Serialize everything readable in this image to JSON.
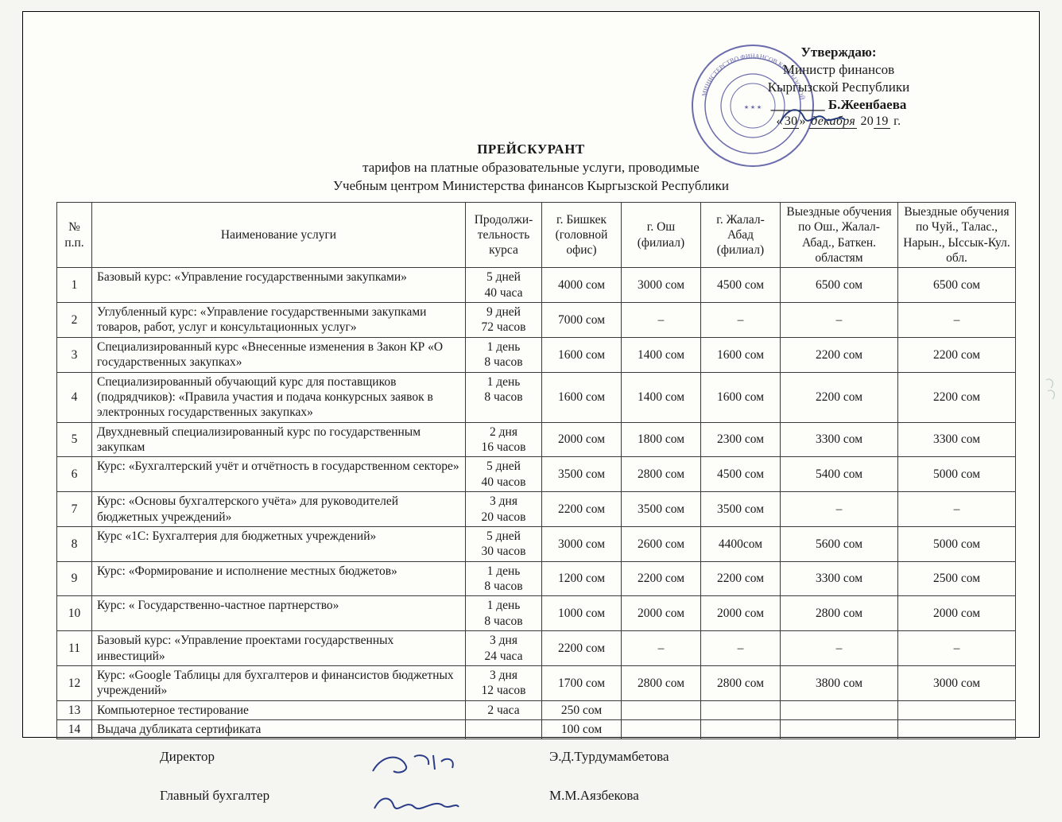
{
  "approval": {
    "label": "Утверждаю:",
    "line1": "Министр финансов",
    "line2": "Кыргызской Республики",
    "name": "Б.Жеенбаева",
    "date_prefix_quote": "«",
    "date_day": "30",
    "date_prefix_quote_close": "»",
    "date_month_handwritten": "декабря",
    "date_year_prefix": "20",
    "date_year_suffix": "19",
    "date_year_tail": " г."
  },
  "stamp": {
    "outer_text": "МИНИСТЕРСТВО ФИНАНСОВ КЫРГЫЗСКОЙ РЕСПУБЛИКИ",
    "color": "#34358f"
  },
  "title": {
    "main": "ПРЕЙСКУРАНТ",
    "line1": "тарифов на платные образовательные услуги, проводимые",
    "line2": "Учебным центром Министерства финансов Кыргызской Республики"
  },
  "table": {
    "columns": [
      "№ п.п.",
      "Наименование услуги",
      "Продолжи­тельность курса",
      "г. Бишкек (головной офис)",
      "г. Ош (филиал)",
      "г. Жалал-Абад (филиал)",
      "Выездные обучения по Ош., Жалал-Абад., Баткен. областям",
      "Выездные обучения по Чуй., Талас., Нарын., Ыссык-Кул. обл."
    ],
    "rows": [
      {
        "num": "1",
        "name": "Базовый курс: «Управление государственными закупками»",
        "dur": "5 дней\n40 часа",
        "p": [
          "4000 сом",
          "3000 сом",
          "4500 сом",
          "6500 сом",
          "6500 сом"
        ]
      },
      {
        "num": "2",
        "name": "Углубленный курс: «Управление государственными закупками товаров, работ, услуг и консультационных услуг»",
        "dur": "9 дней\n72 часов",
        "p": [
          "7000 сом",
          "–",
          "–",
          "–",
          "–"
        ]
      },
      {
        "num": "3",
        "name": "Специализированный курс «Внесенные изменения в Закон КР «О государственных закупках»",
        "dur": "1 день\n8 часов",
        "p": [
          "1600 сом",
          "1400 сом",
          "1600 сом",
          "2200 сом",
          "2200 сом"
        ]
      },
      {
        "num": "4",
        "name": "Специализированный обучающий курс для поставщиков (подрядчиков): «Правила участия и подача конкурсных заявок в электронных государственных закупках»",
        "dur": "1 день\n8 часов",
        "p": [
          "1600 сом",
          "1400 сом",
          "1600 сом",
          "2200 сом",
          "2200 сом"
        ]
      },
      {
        "num": "5",
        "name": "Двухдневный специализированный  курс по государственным закупкам",
        "dur": "2 дня\n16 часов",
        "p": [
          "2000 сом",
          "1800 сом",
          "2300 сом",
          "3300 сом",
          "3300 сом"
        ]
      },
      {
        "num": "6",
        "name": "Курс: «Бухгалтерский учёт и отчётность в государственном секторе»",
        "dur": "5 дней\n40 часов",
        "p": [
          "3500 сом",
          "2800 сом",
          "4500 сом",
          "5400 сом",
          "5000 сом"
        ]
      },
      {
        "num": "7",
        "name": "Курс: «Основы бухгалтерского учёта» для руководителей бюджетных учреждений»",
        "dur": "3 дня\n20 часов",
        "p": [
          "2200 сом",
          "3500 сом",
          "3500 сом",
          "–",
          "–"
        ]
      },
      {
        "num": "8",
        "name": "Курс «1С: Бухгалтерия для бюджетных учреждений»",
        "dur": "5 дней\n30 часов",
        "p": [
          "3000 сом",
          "2600 сом",
          "4400сом",
          "5600 сом",
          "5000 сом"
        ]
      },
      {
        "num": "9",
        "name": "Курс: «Формирование и исполнение местных бюджетов»",
        "dur": "1 день\n8 часов",
        "p": [
          "1200 сом",
          "2200 сом",
          "2200 сом",
          "3300 сом",
          "2500 сом"
        ]
      },
      {
        "num": "10",
        "name": "Курс: « Государственно-частное партнерство»",
        "dur": "1 день\n8 часов",
        "p": [
          "1000 сом",
          "2000 сом",
          "2000 сом",
          "2800 сом",
          "2000 сом"
        ]
      },
      {
        "num": "11",
        "name": "Базовый курс: «Управление проектами государственных инвестиций»",
        "dur": "3 дня\n24 часа",
        "p": [
          "2200 сом",
          "–",
          "–",
          "–",
          "–"
        ]
      },
      {
        "num": "12",
        "name": "Курс: «Google Таблицы для бухгалтеров и финансистов бюджетных учреждений»",
        "dur": "3 дня\n12 часов",
        "p": [
          "1700 сом",
          "2800 сом",
          "2800 сом",
          "3800 сом",
          "3000 сом"
        ]
      },
      {
        "num": "13",
        "name": "Компьютерное тестирование",
        "dur": "2 часа",
        "p": [
          "250 сом",
          "",
          "",
          "",
          ""
        ]
      },
      {
        "num": "14",
        "name": "Выдача дубликата сертификата",
        "dur": "",
        "p": [
          "100 сом",
          "",
          "",
          "",
          ""
        ]
      }
    ]
  },
  "footer": {
    "director_label": "Директор",
    "director_name": "Э.Д.Турдумамбетова",
    "accountant_label": "Главный бухгалтер",
    "accountant_name": "М.М.Аязбекова"
  }
}
